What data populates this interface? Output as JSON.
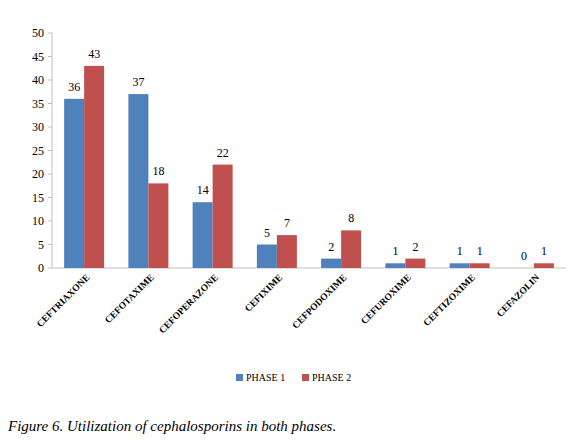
{
  "chart_data": {
    "type": "bar",
    "title": "Figure 6. Utilization of cephalosporins in both phases.",
    "categories": [
      "CEFTRIAXONE",
      "CEFOTAXIME",
      "CEFOPERAZONE",
      "CEFIXIME",
      "CEFPODOXIME",
      "CEFUROXIME",
      "CEFTIZOXIME",
      "CEFAZOLIN"
    ],
    "series": [
      {
        "name": "PHASE 1",
        "color": "#4f81bd",
        "values": [
          36,
          37,
          14,
          5,
          2,
          1,
          1,
          0
        ]
      },
      {
        "name": "PHASE 2",
        "color": "#c0504d",
        "values": [
          43,
          18,
          22,
          7,
          8,
          2,
          1,
          1
        ]
      }
    ],
    "ylim": [
      0,
      50
    ],
    "yticks": [
      0,
      5,
      10,
      15,
      20,
      25,
      30,
      35,
      40,
      45,
      50
    ],
    "grid": false,
    "legend": "bottom",
    "data_labels": true
  }
}
